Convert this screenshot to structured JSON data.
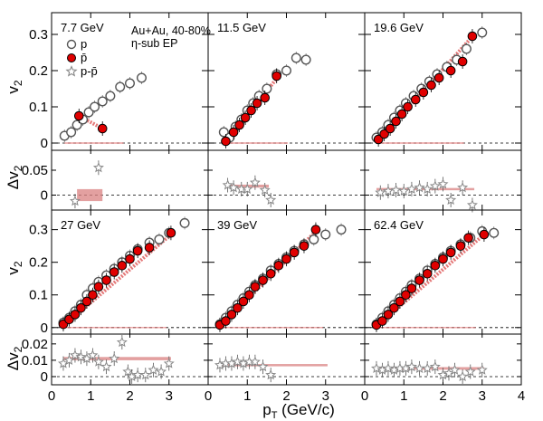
{
  "figure": {
    "note_line1": "Au+Au, 40-80%",
    "note_line2": "η-sub EP",
    "xlabel_main": "p",
    "xlabel_sub": "T",
    "xlabel_unit": " (GeV/c)",
    "ylabel_top_main": "v",
    "ylabel_top_sub": "2",
    "ylabel_bottom_main": "Δv",
    "ylabel_bottom_sub": "2"
  },
  "legend": {
    "items": [
      {
        "label": "p",
        "marker": "open-circle"
      },
      {
        "label": "p̄",
        "marker": "filled-circle"
      },
      {
        "label": "p-p̄",
        "marker": "open-star"
      }
    ]
  },
  "colors": {
    "pbar_fill": "#e00000",
    "fit_line": "#e06060",
    "delta_band": "#d98080",
    "open_marker": "#555555",
    "star_marker": "#888888"
  },
  "chart_data": {
    "type": "scatter",
    "xlim": [
      0,
      4
    ],
    "x_ticks": [
      "0",
      "1",
      "2",
      "3",
      "4"
    ],
    "v2_ylim": [
      -0.02,
      0.36
    ],
    "v2_ticks": [
      "0",
      "0.1",
      "0.2",
      "0.3"
    ],
    "dv2_ticks_row1": [
      "0",
      "0.05"
    ],
    "dv2_ylim_row1": [
      -0.03,
      0.09
    ],
    "dv2_ticks_row2": [
      "0",
      "0.01",
      "0.02"
    ],
    "dv2_ylim_row2": [
      -0.005,
      0.026
    ],
    "panels": [
      {
        "energy": "7.7 GeV",
        "p": {
          "x": [
            0.33,
            0.5,
            0.65,
            0.8,
            0.95,
            1.1,
            1.3,
            1.5,
            1.75,
            2.0,
            2.3
          ],
          "y": [
            0.02,
            0.03,
            0.05,
            0.065,
            0.085,
            0.1,
            0.115,
            0.13,
            0.155,
            0.165,
            0.18
          ]
        },
        "pbar": {
          "x": [
            0.7,
            1.3
          ],
          "y": [
            0.075,
            0.04
          ]
        },
        "fit": {
          "x": [
            0.7,
            1.3
          ],
          "y": [
            0.075,
            0.04
          ]
        },
        "dv2": {
          "x": [
            0.6,
            1.2
          ],
          "y": [
            -0.012,
            0.055
          ]
        },
        "dv2_band": {
          "x0": 0.65,
          "x1": 1.3,
          "y": 0.0,
          "half": 0.012
        }
      },
      {
        "energy": "11.5 GeV",
        "p": {
          "x": [
            0.4,
            0.55,
            0.7,
            0.85,
            1.0,
            1.15,
            1.3,
            1.5,
            1.75,
            2.0,
            2.25,
            2.5
          ],
          "y": [
            0.03,
            0.015,
            0.045,
            0.065,
            0.09,
            0.11,
            0.13,
            0.15,
            0.19,
            0.2,
            0.235,
            0.23
          ]
        },
        "pbar": {
          "x": [
            0.45,
            0.65,
            0.8,
            0.95,
            1.1,
            1.25,
            1.45,
            1.75
          ],
          "y": [
            0.005,
            0.03,
            0.05,
            0.07,
            0.09,
            0.11,
            0.125,
            0.185
          ]
        },
        "fit": {
          "x": [
            0.45,
            1.8
          ],
          "y": [
            0.0,
            0.185
          ]
        },
        "dv2": {
          "x": [
            0.5,
            0.65,
            0.85,
            1.0,
            1.2,
            1.45,
            1.6
          ],
          "y": [
            0.02,
            0.015,
            0.012,
            0.012,
            0.025,
            0.01,
            -0.01
          ]
        },
        "dv2_band": {
          "x0": 0.45,
          "x1": 1.55,
          "y": 0.018,
          "half": 0.003
        }
      },
      {
        "energy": "19.6 GeV",
        "p": {
          "x": [
            0.3,
            0.45,
            0.6,
            0.75,
            0.9,
            1.05,
            1.25,
            1.45,
            1.65,
            1.85,
            2.1,
            2.35,
            2.6,
            3.0
          ],
          "y": [
            0.015,
            0.03,
            0.05,
            0.07,
            0.09,
            0.11,
            0.13,
            0.15,
            0.17,
            0.19,
            0.21,
            0.23,
            0.26,
            0.305
          ]
        },
        "pbar": {
          "x": [
            0.35,
            0.5,
            0.65,
            0.8,
            0.95,
            1.1,
            1.3,
            1.5,
            1.7,
            1.9,
            2.2,
            2.5,
            2.75
          ],
          "y": [
            0.01,
            0.025,
            0.04,
            0.06,
            0.08,
            0.1,
            0.12,
            0.14,
            0.16,
            0.18,
            0.2,
            0.225,
            0.295
          ]
        },
        "fit": {
          "x": [
            0.35,
            2.8
          ],
          "y": [
            0.005,
            0.3
          ]
        },
        "dv2": {
          "x": [
            0.4,
            0.6,
            0.8,
            1.0,
            1.2,
            1.4,
            1.6,
            1.8,
            2.0,
            2.2,
            2.5,
            2.75
          ],
          "y": [
            0.005,
            0.008,
            0.01,
            0.008,
            0.012,
            0.015,
            0.012,
            0.018,
            0.022,
            -0.01,
            0.015,
            -0.02
          ]
        },
        "dv2_band": {
          "x0": 0.3,
          "x1": 2.8,
          "y": 0.012,
          "half": 0.002
        }
      },
      {
        "energy": "27 GeV",
        "p": {
          "x": [
            0.3,
            0.45,
            0.6,
            0.75,
            0.9,
            1.05,
            1.2,
            1.4,
            1.6,
            1.8,
            2.0,
            2.2,
            2.5,
            2.75,
            3.0,
            3.4
          ],
          "y": [
            0.015,
            0.03,
            0.05,
            0.07,
            0.1,
            0.12,
            0.14,
            0.16,
            0.18,
            0.2,
            0.22,
            0.24,
            0.26,
            0.27,
            0.29,
            0.32
          ]
        },
        "pbar": {
          "x": [
            0.3,
            0.45,
            0.6,
            0.75,
            0.9,
            1.05,
            1.2,
            1.4,
            1.6,
            1.8,
            2.0,
            2.2,
            2.5,
            3.05
          ],
          "y": [
            0.01,
            0.025,
            0.04,
            0.06,
            0.08,
            0.1,
            0.125,
            0.145,
            0.17,
            0.19,
            0.21,
            0.235,
            0.245,
            0.29
          ]
        },
        "fit": {
          "x": [
            0.3,
            3.1
          ],
          "y": [
            0.005,
            0.29
          ]
        },
        "dv2": {
          "x": [
            0.3,
            0.45,
            0.6,
            0.75,
            0.9,
            1.05,
            1.2,
            1.4,
            1.6,
            1.8,
            1.95,
            2.05,
            2.2,
            2.4,
            2.6,
            2.8,
            3.0
          ],
          "y": [
            0.008,
            0.01,
            0.013,
            0.012,
            0.011,
            0.013,
            0.009,
            0.006,
            0.011,
            0.021,
            0.003,
            0.0,
            0.001,
            0.001,
            0.004,
            0.003,
            0.008
          ]
        },
        "dv2_band": {
          "x0": 0.3,
          "x1": 3.05,
          "y": 0.011,
          "half": 0.001
        }
      },
      {
        "energy": "39 GeV",
        "p": {
          "x": [
            0.3,
            0.45,
            0.6,
            0.75,
            0.9,
            1.05,
            1.2,
            1.4,
            1.6,
            1.8,
            2.0,
            2.2,
            2.45,
            2.7,
            3.0,
            3.4
          ],
          "y": [
            0.01,
            0.03,
            0.05,
            0.07,
            0.09,
            0.11,
            0.13,
            0.15,
            0.175,
            0.195,
            0.215,
            0.235,
            0.255,
            0.27,
            0.285,
            0.3
          ]
        },
        "pbar": {
          "x": [
            0.3,
            0.45,
            0.6,
            0.75,
            0.9,
            1.05,
            1.2,
            1.4,
            1.6,
            1.8,
            2.0,
            2.2,
            2.45,
            2.75
          ],
          "y": [
            0.008,
            0.02,
            0.04,
            0.06,
            0.08,
            0.1,
            0.125,
            0.145,
            0.165,
            0.19,
            0.21,
            0.23,
            0.25,
            0.3
          ]
        },
        "fit": {
          "x": [
            0.3,
            2.8
          ],
          "y": [
            0.005,
            0.3
          ]
        },
        "dv2": {
          "x": [
            0.3,
            0.45,
            0.6,
            0.75,
            0.9,
            1.05,
            1.2,
            1.4,
            1.6
          ],
          "y": [
            0.007,
            0.008,
            0.008,
            0.009,
            0.008,
            0.009,
            0.009,
            0.006,
            0.001
          ]
        },
        "dv2_band": {
          "x0": 0.3,
          "x1": 3.05,
          "y": 0.007,
          "half": 0.0007
        }
      },
      {
        "energy": "62.4 GeV",
        "p": {
          "x": [
            0.3,
            0.45,
            0.6,
            0.75,
            0.9,
            1.05,
            1.2,
            1.4,
            1.6,
            1.8,
            2.0,
            2.2,
            2.45,
            2.7,
            3.0,
            3.3
          ],
          "y": [
            0.01,
            0.03,
            0.05,
            0.07,
            0.09,
            0.11,
            0.13,
            0.15,
            0.175,
            0.195,
            0.215,
            0.235,
            0.255,
            0.275,
            0.295,
            0.29
          ]
        },
        "pbar": {
          "x": [
            0.3,
            0.45,
            0.6,
            0.75,
            0.9,
            1.05,
            1.2,
            1.4,
            1.6,
            1.8,
            2.0,
            2.2,
            2.45,
            2.65,
            3.05
          ],
          "y": [
            0.008,
            0.02,
            0.04,
            0.06,
            0.08,
            0.1,
            0.12,
            0.145,
            0.165,
            0.19,
            0.21,
            0.23,
            0.25,
            0.275,
            0.285
          ]
        },
        "fit": {
          "x": [
            0.3,
            3.1
          ],
          "y": [
            0.005,
            0.29
          ]
        },
        "dv2": {
          "x": [
            0.3,
            0.45,
            0.6,
            0.75,
            0.9,
            1.05,
            1.2,
            1.4,
            1.6,
            1.8,
            2.0,
            2.15,
            2.3,
            2.5,
            2.7,
            3.0
          ],
          "y": [
            0.005,
            0.004,
            0.005,
            0.004,
            0.005,
            0.005,
            0.006,
            0.005,
            0.005,
            0.006,
            0.001,
            0.002,
            0.004,
            0.0,
            0.003,
            0.004
          ]
        },
        "dv2_band": {
          "x0": 0.3,
          "x1": 3.05,
          "y": 0.005,
          "half": 0.0008
        }
      }
    ]
  }
}
